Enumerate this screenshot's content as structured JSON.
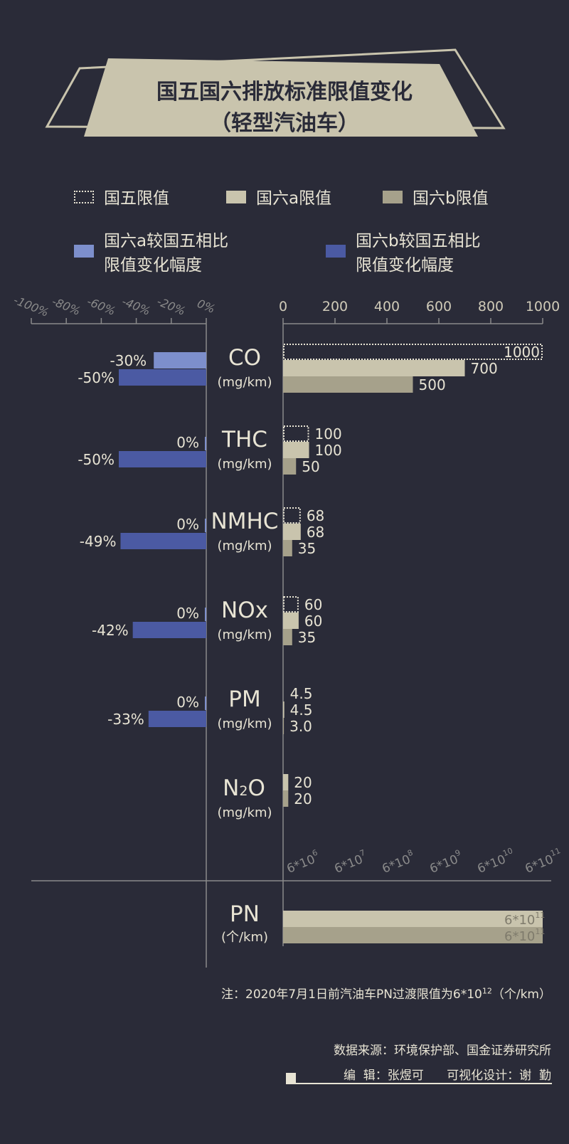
{
  "title": {
    "line1": "国五国六排放标准限值变化",
    "line2": "（轻型汽油车）"
  },
  "legend": {
    "guo5": "国五限值",
    "guo6a": "国六a限值",
    "guo6b": "国六b限值",
    "change6a_line1": "国六a较国五相比",
    "change6a_line2": "限值变化幅度",
    "change6b_line1": "国六b较国五相比",
    "change6b_line2": "限值变化幅度"
  },
  "colors": {
    "background": "#2a2b38",
    "guo5": "#2a2b38",
    "guo6a": "#c9c4ad",
    "guo6b": "#a6a18b",
    "change6a": "#7d8fcc",
    "change6b": "#4b5aa3",
    "text": "#e8e4d4",
    "axis": "#8a8a8a"
  },
  "chart_data": {
    "type": "bar",
    "categories": [
      {
        "name": "CO",
        "unit": "(mg/km)"
      },
      {
        "name": "THC",
        "unit": "(mg/km)"
      },
      {
        "name": "NMHC",
        "unit": "(mg/km)"
      },
      {
        "name": "NOx",
        "unit": "(mg/km)"
      },
      {
        "name": "PM",
        "unit": "(mg/km)"
      },
      {
        "name": "N2O",
        "unit": "(mg/km)"
      },
      {
        "name": "PN",
        "unit": "(个/km)"
      }
    ],
    "limits": {
      "xlim": [
        0,
        1000
      ],
      "ticks": [
        "0",
        "200",
        "400",
        "600",
        "800",
        "1000"
      ],
      "series": [
        {
          "name": "国五限值",
          "values": [
            1000,
            100,
            68,
            60,
            4.5,
            null
          ],
          "labels": [
            "1000",
            "100",
            "68",
            "60",
            "4.5",
            ""
          ]
        },
        {
          "name": "国六a限值",
          "values": [
            700,
            100,
            68,
            60,
            4.5,
            20
          ],
          "labels": [
            "700",
            "100",
            "68",
            "60",
            "4.5",
            "20"
          ]
        },
        {
          "name": "国六b限值",
          "values": [
            500,
            50,
            35,
            35,
            3.0,
            20
          ],
          "labels": [
            "500",
            "50",
            "35",
            "35",
            "3.0",
            "20"
          ]
        }
      ]
    },
    "change": {
      "xlim": [
        -100,
        0
      ],
      "ticks": [
        "-100%",
        "-80%",
        "-60%",
        "-40%",
        "-20%",
        "0%"
      ],
      "series": [
        {
          "name": "国六a较国五相比限值变化幅度",
          "values": [
            -30,
            0,
            0,
            0,
            0
          ],
          "labels": [
            "-30%",
            "0%",
            "0%",
            "0%",
            "0%"
          ]
        },
        {
          "name": "国六b较国五相比限值变化幅度",
          "values": [
            -50,
            -50,
            -49,
            -42,
            -33
          ],
          "labels": [
            "-50%",
            "-50%",
            "-49%",
            "-42%",
            "-33%"
          ]
        }
      ]
    },
    "pn": {
      "scale": "log",
      "ticks": [
        {
          "base": "6*10",
          "exp": "6"
        },
        {
          "base": "6*10",
          "exp": "7"
        },
        {
          "base": "6*10",
          "exp": "8"
        },
        {
          "base": "6*10",
          "exp": "9"
        },
        {
          "base": "6*10",
          "exp": "10"
        },
        {
          "base": "6*10",
          "exp": "11"
        }
      ],
      "series": [
        {
          "name": "国六a限值",
          "value": 600000000000.0,
          "label_base": "6*10",
          "label_exp": "11"
        },
        {
          "name": "国六b限值",
          "value": 600000000000.0,
          "label_base": "6*10",
          "label_exp": "11"
        }
      ]
    }
  },
  "note": {
    "text": "注：2020年7月1日前汽油车PN过渡限值为6*10",
    "exp": "12",
    "suffix": "（个/km）"
  },
  "footer": {
    "source": "数据来源：环境保护部、国金证券研究所",
    "credits": "编  辑：张煜可      可视化设计：谢  勤"
  }
}
